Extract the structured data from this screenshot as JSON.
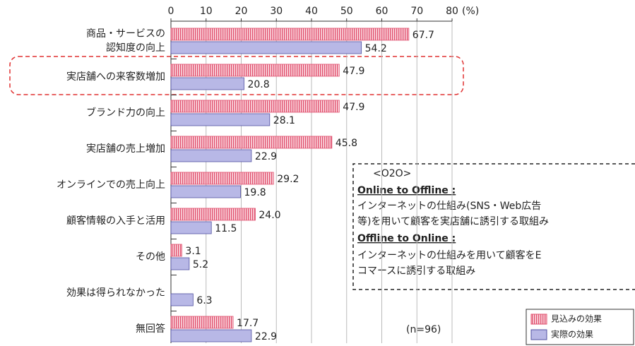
{
  "chart_data": {
    "type": "hbar",
    "categories": [
      [
        "商品・サービスの",
        "認知度の向上"
      ],
      "実店舗への来客数増加",
      "ブランド力の向上",
      "実店舗の売上増加",
      "オンラインでの売上向上",
      "顧客情報の入手と活用",
      "その他",
      "効果は得られなかった",
      "無回答"
    ],
    "series": [
      {
        "name": "見込みの効果",
        "color": "#e0506e",
        "values": [
          67.7,
          47.9,
          47.9,
          45.8,
          29.2,
          24.0,
          3.1,
          null,
          17.7
        ],
        "value_labels": [
          "67.7",
          "47.9",
          "47.9",
          "45.8",
          "29.2",
          "24.0",
          "3.1",
          null,
          "17.7"
        ]
      },
      {
        "name": "実際の効果",
        "color": "#b8b8e6",
        "values": [
          54.2,
          20.8,
          28.1,
          22.9,
          19.8,
          11.5,
          5.2,
          6.3,
          22.9
        ]
      }
    ],
    "xlim": [
      0,
      80
    ],
    "xticks": [
      0,
      10,
      20,
      30,
      40,
      50,
      60,
      70,
      80
    ],
    "axis_unit": "(%)",
    "grid": true,
    "note": "(n=96)",
    "annotation": {
      "title": "<O2O>",
      "heading1": "Online to Offline :",
      "text1": [
        "インターネットの仕組み(SNS・Web広告",
        "等)を用いて顧客を実店舗に誘引する取組み"
      ],
      "heading2": "Offline to Online :",
      "text2": [
        "インターネットの仕組みを用いて顧客をE",
        "コマースに誘引する取組み"
      ]
    }
  }
}
